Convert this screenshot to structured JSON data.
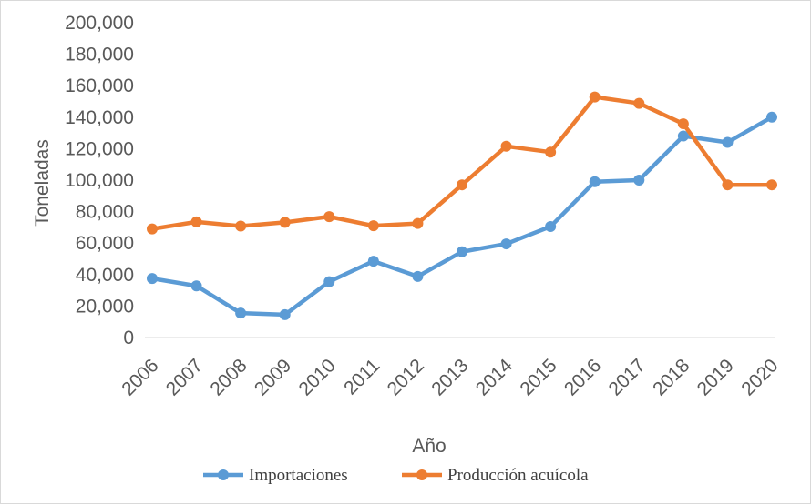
{
  "chart_data": {
    "type": "line",
    "title": "",
    "xlabel": "Año",
    "ylabel": "Toneladas",
    "ylim": [
      0,
      200000
    ],
    "y_ticks": [
      0,
      20000,
      40000,
      60000,
      80000,
      100000,
      120000,
      140000,
      160000,
      180000,
      200000
    ],
    "y_tick_labels": [
      "0",
      "20,000",
      "40,000",
      "60,000",
      "80,000",
      "100,000",
      "120,000",
      "140,000",
      "160,000",
      "180,000",
      "200,000"
    ],
    "categories": [
      "2006",
      "2007",
      "2008",
      "2009",
      "2010",
      "2011",
      "2012",
      "2013",
      "2014",
      "2015",
      "2016",
      "2017",
      "2018",
      "2019",
      "2020"
    ],
    "grid": false,
    "legend_position": "bottom",
    "series": [
      {
        "name": "Importaciones",
        "color": "#5B9BD5",
        "values": [
          37500,
          32800,
          15500,
          14500,
          35500,
          48500,
          38800,
          54500,
          59500,
          70500,
          99000,
          100000,
          128000,
          124000,
          140000
        ]
      },
      {
        "name": "Producción acuícola",
        "color": "#ED7D31",
        "values": [
          69000,
          73500,
          70800,
          73200,
          76800,
          71000,
          72500,
          97000,
          121500,
          117800,
          152800,
          148800,
          135800,
          97000,
          97000
        ]
      }
    ]
  }
}
